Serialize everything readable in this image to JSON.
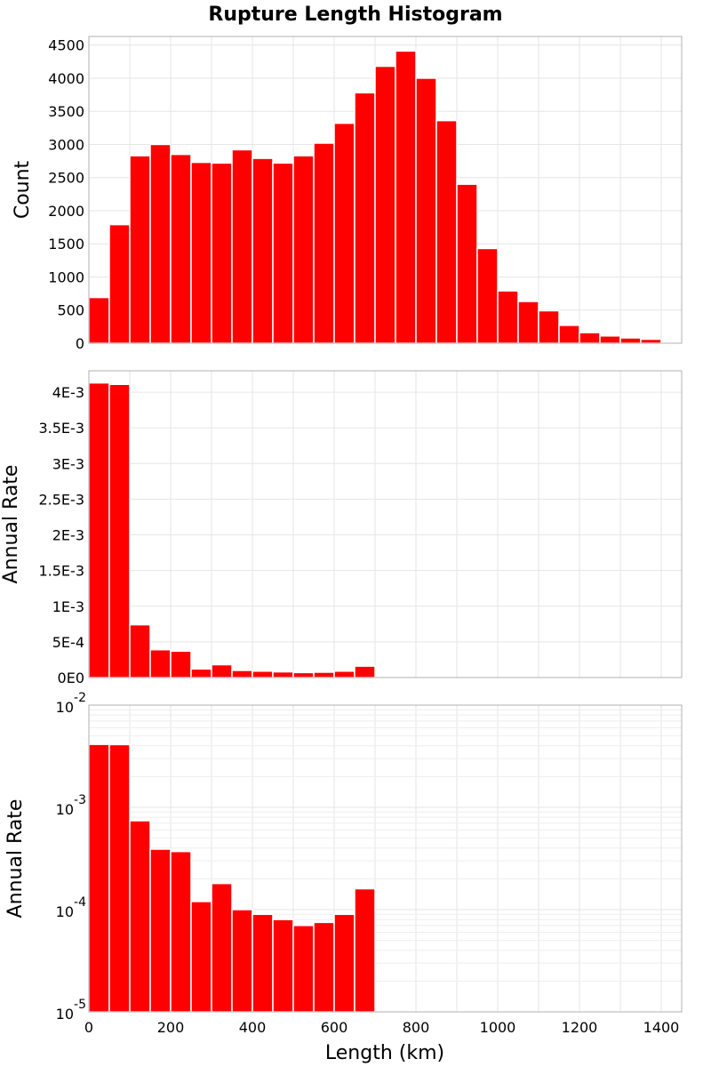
{
  "chart_data": {
    "type": "bar",
    "title": "Rupture Length Histogram",
    "xlabel": "Length (km)",
    "xlim": [
      0,
      1450
    ],
    "bin_width": 50,
    "x_ticks": [
      0,
      200,
      400,
      600,
      800,
      1000,
      1200,
      1400
    ],
    "x_tick_labels": [
      "0",
      "200",
      "400",
      "600",
      "800",
      "1000",
      "1200",
      "1400"
    ],
    "panels": [
      {
        "id": "count",
        "ylabel": "Count",
        "scale": "linear",
        "ylim": [
          0,
          4630
        ],
        "y_ticks": [
          0,
          500,
          1000,
          1500,
          2000,
          2500,
          3000,
          3500,
          4000,
          4500
        ],
        "y_tick_labels": [
          "0",
          "500",
          "1000",
          "1500",
          "2000",
          "2500",
          "3000",
          "3500",
          "4000",
          "4500"
        ],
        "values": [
          690,
          1790,
          2830,
          3000,
          2850,
          2730,
          2720,
          2920,
          2790,
          2720,
          2830,
          3020,
          3320,
          3780,
          4180,
          4410,
          4000,
          3360,
          2400,
          1430,
          790,
          630,
          490,
          270,
          160,
          110,
          80,
          60,
          20
        ]
      },
      {
        "id": "rate-linear",
        "ylabel": "Annual Rate",
        "scale": "linear",
        "ylim": [
          0,
          0.0043
        ],
        "y_ticks": [
          0,
          0.0005,
          0.001,
          0.0015,
          0.002,
          0.0025,
          0.003,
          0.0035,
          0.004
        ],
        "y_tick_labels": [
          "0E0",
          "5E-4",
          "1E-3",
          "1.5E-3",
          "2E-3",
          "2.5E-3",
          "3E-3",
          "3.5E-3",
          "4E-3"
        ],
        "values": [
          0.00413,
          0.00411,
          0.00074,
          0.00039,
          0.00037,
          0.00012,
          0.00018,
          0.0001,
          9e-05,
          8e-05,
          7e-05,
          7.5e-05,
          9e-05,
          0.00016
        ]
      },
      {
        "id": "rate-log",
        "ylabel": "Annual Rate",
        "scale": "log",
        "ylim": [
          1e-05,
          0.01
        ],
        "y_ticks": [
          1e-05,
          0.0001,
          0.001,
          0.01
        ],
        "y_tick_bases": [
          "10",
          "10",
          "10",
          "10"
        ],
        "y_tick_exponents": [
          "-5",
          "-4",
          "-3",
          "-2"
        ],
        "values": [
          0.00413,
          0.00411,
          0.00074,
          0.00039,
          0.00037,
          0.00012,
          0.00018,
          0.0001,
          9e-05,
          8e-05,
          7e-05,
          7.5e-05,
          9e-05,
          0.00016
        ]
      }
    ]
  }
}
